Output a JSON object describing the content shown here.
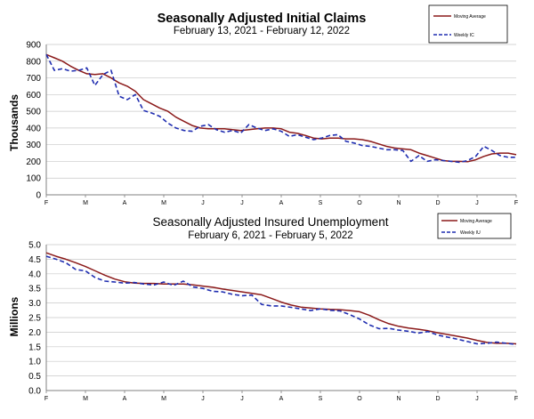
{
  "chart_data": [
    {
      "type": "line",
      "title": "Seasonally Adjusted Initial Claims",
      "subtitle": "February 13, 2021 - February 12, 2022",
      "xlabel": "",
      "ylabel": "Thousands",
      "ylim": [
        0,
        900
      ],
      "yticks": [
        "0",
        "100",
        "200",
        "300",
        "400",
        "500",
        "600",
        "700",
        "800",
        "900"
      ],
      "xticks": [
        "F",
        "M",
        "A",
        "M",
        "J",
        "J",
        "A",
        "S",
        "O",
        "N",
        "D",
        "J",
        "F"
      ],
      "grid": true,
      "legend_position": "top-right",
      "colors": {
        "ma": "#8b1a1a",
        "weekly": "#1f2db0",
        "grid": "#c8c8c8",
        "axis": "#808080"
      },
      "series": [
        {
          "name": "Moving Average",
          "style": "solid",
          "values": [
            840,
            820,
            800,
            770,
            745,
            725,
            720,
            725,
            700,
            670,
            650,
            620,
            570,
            545,
            520,
            500,
            465,
            440,
            415,
            400,
            395,
            395,
            395,
            390,
            385,
            390,
            395,
            400,
            400,
            395,
            375,
            368,
            355,
            340,
            335,
            340,
            340,
            335,
            335,
            330,
            320,
            305,
            290,
            280,
            275,
            270,
            250,
            235,
            220,
            205,
            200,
            200,
            198,
            210,
            230,
            245,
            250,
            250,
            240
          ]
        },
        {
          "name": "Weekly IC",
          "style": "dashed",
          "values": [
            840,
            745,
            755,
            740,
            745,
            760,
            655,
            720,
            745,
            590,
            570,
            600,
            505,
            490,
            470,
            430,
            400,
            385,
            380,
            410,
            420,
            390,
            375,
            385,
            370,
            420,
            400,
            385,
            395,
            380,
            350,
            360,
            345,
            330,
            340,
            355,
            360,
            320,
            310,
            295,
            290,
            280,
            270,
            270,
            265,
            200,
            235,
            200,
            210,
            205,
            200,
            195,
            205,
            230,
            290,
            265,
            235,
            225,
            225
          ]
        }
      ]
    },
    {
      "type": "line",
      "title": "Seasonally Adjusted Insured Unemployment",
      "subtitle": "February 6, 2021 - February 5, 2022",
      "xlabel": "",
      "ylabel": "Millions",
      "ylim": [
        0,
        5
      ],
      "yticks": [
        "0.0",
        "0.5",
        "1.0",
        "1.5",
        "2.0",
        "2.5",
        "3.0",
        "3.5",
        "4.0",
        "4.5",
        "5.0"
      ],
      "xticks": [
        "F",
        "M",
        "A",
        "M",
        "J",
        "J",
        "A",
        "S",
        "O",
        "N",
        "D",
        "J",
        "F"
      ],
      "grid": true,
      "legend_position": "top-right",
      "colors": {
        "ma": "#8b1a1a",
        "weekly": "#1f2db0",
        "grid": "#c8c8c8",
        "axis": "#808080"
      },
      "series": [
        {
          "name": "Moving Average",
          "style": "solid",
          "values": [
            4.72,
            4.6,
            4.5,
            4.38,
            4.25,
            4.1,
            3.95,
            3.82,
            3.73,
            3.68,
            3.67,
            3.67,
            3.65,
            3.65,
            3.65,
            3.62,
            3.58,
            3.54,
            3.48,
            3.43,
            3.38,
            3.33,
            3.28,
            3.16,
            3.03,
            2.93,
            2.86,
            2.83,
            2.8,
            2.78,
            2.77,
            2.74,
            2.7,
            2.58,
            2.42,
            2.29,
            2.2,
            2.14,
            2.1,
            2.05,
            1.98,
            1.92,
            1.86,
            1.8,
            1.72,
            1.65,
            1.62,
            1.62,
            1.6
          ]
        },
        {
          "name": "Weekly IU",
          "style": "dashed",
          "values": [
            4.6,
            4.5,
            4.38,
            4.15,
            4.1,
            3.87,
            3.75,
            3.72,
            3.68,
            3.7,
            3.65,
            3.62,
            3.72,
            3.6,
            3.75,
            3.55,
            3.5,
            3.4,
            3.38,
            3.3,
            3.25,
            3.27,
            2.95,
            2.9,
            2.9,
            2.85,
            2.8,
            2.74,
            2.8,
            2.75,
            2.73,
            2.6,
            2.45,
            2.25,
            2.12,
            2.13,
            2.07,
            2.03,
            1.97,
            2.02,
            1.9,
            1.83,
            1.76,
            1.68,
            1.6,
            1.62,
            1.66,
            1.62,
            1.58
          ]
        }
      ]
    }
  ]
}
